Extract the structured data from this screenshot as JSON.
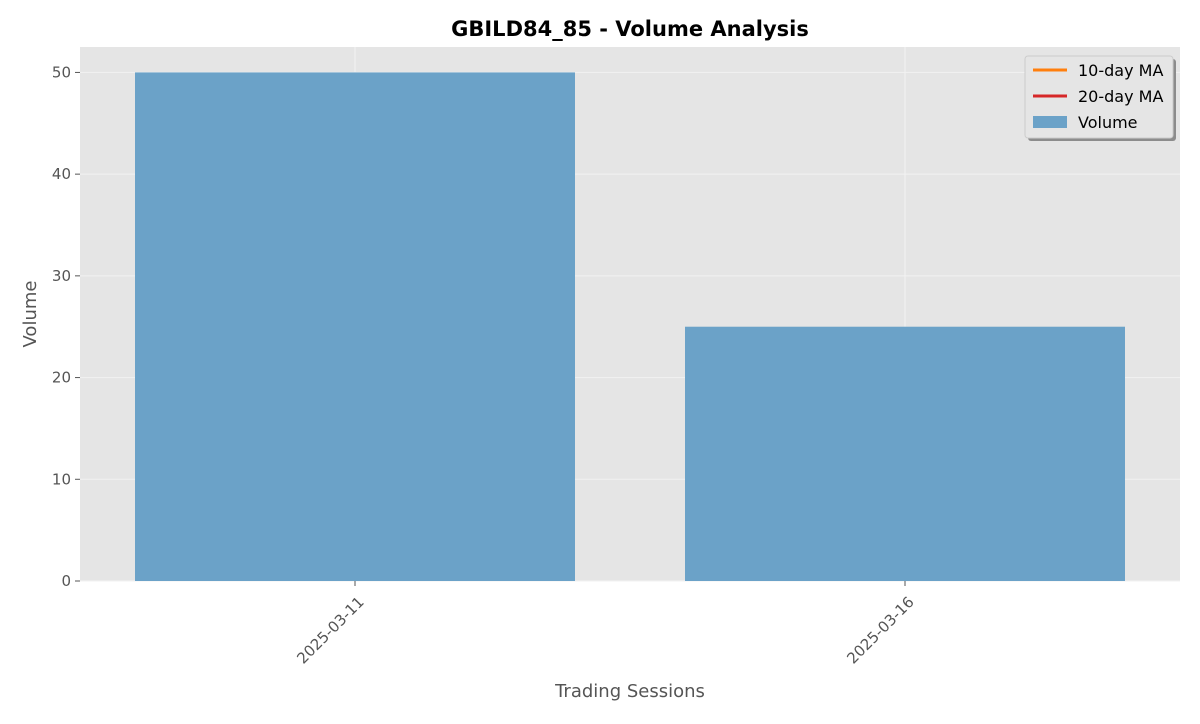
{
  "chart_data": {
    "type": "bar",
    "title": "GBILD84_85 - Volume Analysis",
    "xlabel": "Trading Sessions",
    "ylabel": "Volume",
    "categories": [
      "2025-03-11",
      "2025-03-16"
    ],
    "series": [
      {
        "name": "Volume",
        "values": [
          50,
          25
        ],
        "color": "#6ba2c8"
      }
    ],
    "ylim": [
      0,
      52.5
    ],
    "yticks": [
      0,
      10,
      20,
      30,
      40,
      50
    ],
    "grid": true,
    "legend_position": "top-right",
    "legend": [
      {
        "label": "10-day MA",
        "kind": "line",
        "color": "#ff7f0e"
      },
      {
        "label": "20-day MA",
        "kind": "line",
        "color": "#d62728"
      },
      {
        "label": "Volume",
        "kind": "patch",
        "color": "#6ba2c8"
      }
    ],
    "colors": {
      "plot_background": "#e5e5e5",
      "grid": "#f2f2f2",
      "axis_text": "#555555"
    }
  }
}
